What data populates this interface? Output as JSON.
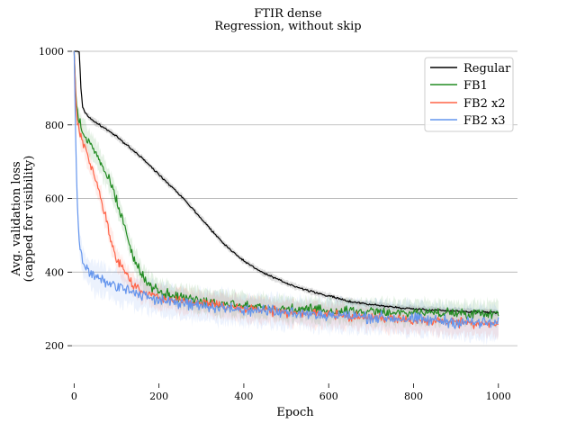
{
  "chart_data": {
    "type": "line",
    "title": "FTIR dense",
    "subtitle": "Regression, without skip",
    "xlabel": "Epoch",
    "ylabel_line1": "Avg. validation loss",
    "ylabel_line2": "(capped for visibility)",
    "xlim": [
      -5,
      1045
    ],
    "ylim": [
      100,
      1000
    ],
    "x_ticks": [
      0,
      200,
      400,
      600,
      800,
      1000
    ],
    "y_ticks": [
      200,
      400,
      600,
      800,
      1000
    ],
    "grid": "horizontal",
    "legend_position": "top-right",
    "series": [
      {
        "name": "Regular",
        "color": "#000000",
        "noise": 3,
        "band": 8,
        "x": [
          0,
          12,
          16,
          20,
          25,
          30,
          40,
          60,
          80,
          100,
          130,
          160,
          200,
          250,
          300,
          350,
          400,
          450,
          500,
          550,
          600,
          650,
          700,
          750,
          800,
          850,
          900,
          950,
          1000
        ],
        "y": [
          1000,
          1000,
          900,
          850,
          835,
          828,
          815,
          800,
          785,
          768,
          740,
          710,
          665,
          610,
          545,
          480,
          430,
          395,
          370,
          350,
          335,
          320,
          312,
          305,
          300,
          297,
          294,
          292,
          290
        ]
      },
      {
        "name": "FB1",
        "color": "#228B22",
        "noise": 14,
        "band": 30,
        "x": [
          0,
          5,
          10,
          20,
          40,
          60,
          80,
          100,
          120,
          140,
          160,
          180,
          200,
          250,
          300,
          400,
          500,
          600,
          700,
          800,
          900,
          1000
        ],
        "y": [
          1000,
          860,
          815,
          785,
          745,
          705,
          655,
          595,
          520,
          440,
          390,
          360,
          345,
          332,
          322,
          310,
          300,
          295,
          292,
          290,
          289,
          288
        ]
      },
      {
        "name": "FB2 x2",
        "color": "#FF6347",
        "noise": 14,
        "band": 30,
        "x": [
          0,
          5,
          10,
          20,
          40,
          60,
          80,
          100,
          120,
          140,
          160,
          180,
          200,
          250,
          300,
          400,
          500,
          600,
          700,
          800,
          900,
          1000
        ],
        "y": [
          1000,
          840,
          795,
          755,
          685,
          615,
          520,
          435,
          395,
          365,
          350,
          340,
          332,
          322,
          315,
          300,
          290,
          282,
          275,
          268,
          262,
          258
        ]
      },
      {
        "name": "FB2 x3",
        "color": "#6495ED",
        "noise": 18,
        "band": 40,
        "x": [
          0,
          3,
          6,
          10,
          15,
          20,
          30,
          50,
          80,
          100,
          150,
          200,
          250,
          300,
          400,
          500,
          600,
          700,
          800,
          900,
          1000
        ],
        "y": [
          1000,
          800,
          650,
          520,
          460,
          430,
          405,
          385,
          370,
          360,
          340,
          325,
          315,
          308,
          298,
          290,
          283,
          278,
          272,
          265,
          260
        ]
      }
    ]
  }
}
